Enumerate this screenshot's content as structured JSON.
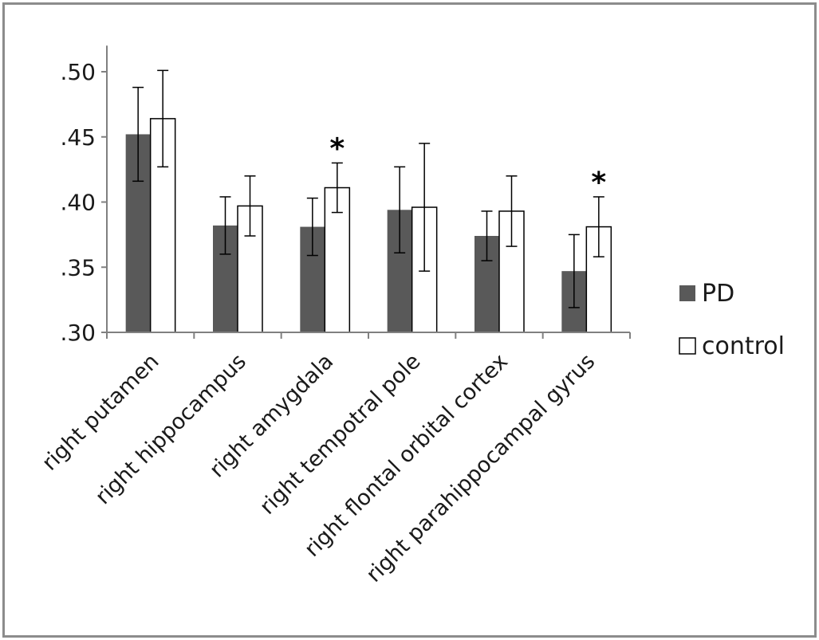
{
  "chart_data": {
    "type": "bar",
    "categories": [
      "right putamen",
      "right hippocampus",
      "right amygdala",
      "right tempotral pole",
      "right flontal orbital cortex",
      "right parahippocampal gyrus"
    ],
    "series": [
      {
        "name": "PD",
        "color": "#595959",
        "values": [
          0.452,
          0.382,
          0.381,
          0.394,
          0.374,
          0.347
        ],
        "error": [
          0.036,
          0.022,
          0.022,
          0.033,
          0.019,
          0.028
        ]
      },
      {
        "name": "control",
        "color": "#ffffff",
        "values": [
          0.464,
          0.397,
          0.411,
          0.396,
          0.393,
          0.381
        ],
        "error": [
          0.037,
          0.023,
          0.019,
          0.049,
          0.027,
          0.023
        ]
      }
    ],
    "ylim": [
      0.3,
      0.52
    ],
    "yticks": [
      ".30",
      ".35",
      ".40",
      ".45",
      ".50"
    ],
    "ytick_values": [
      0.3,
      0.35,
      0.4,
      0.45,
      0.5
    ],
    "significance": [
      {
        "category_index": 2,
        "label": "*"
      },
      {
        "category_index": 5,
        "label": "*"
      }
    ],
    "legend_position": "right",
    "grid": false
  }
}
